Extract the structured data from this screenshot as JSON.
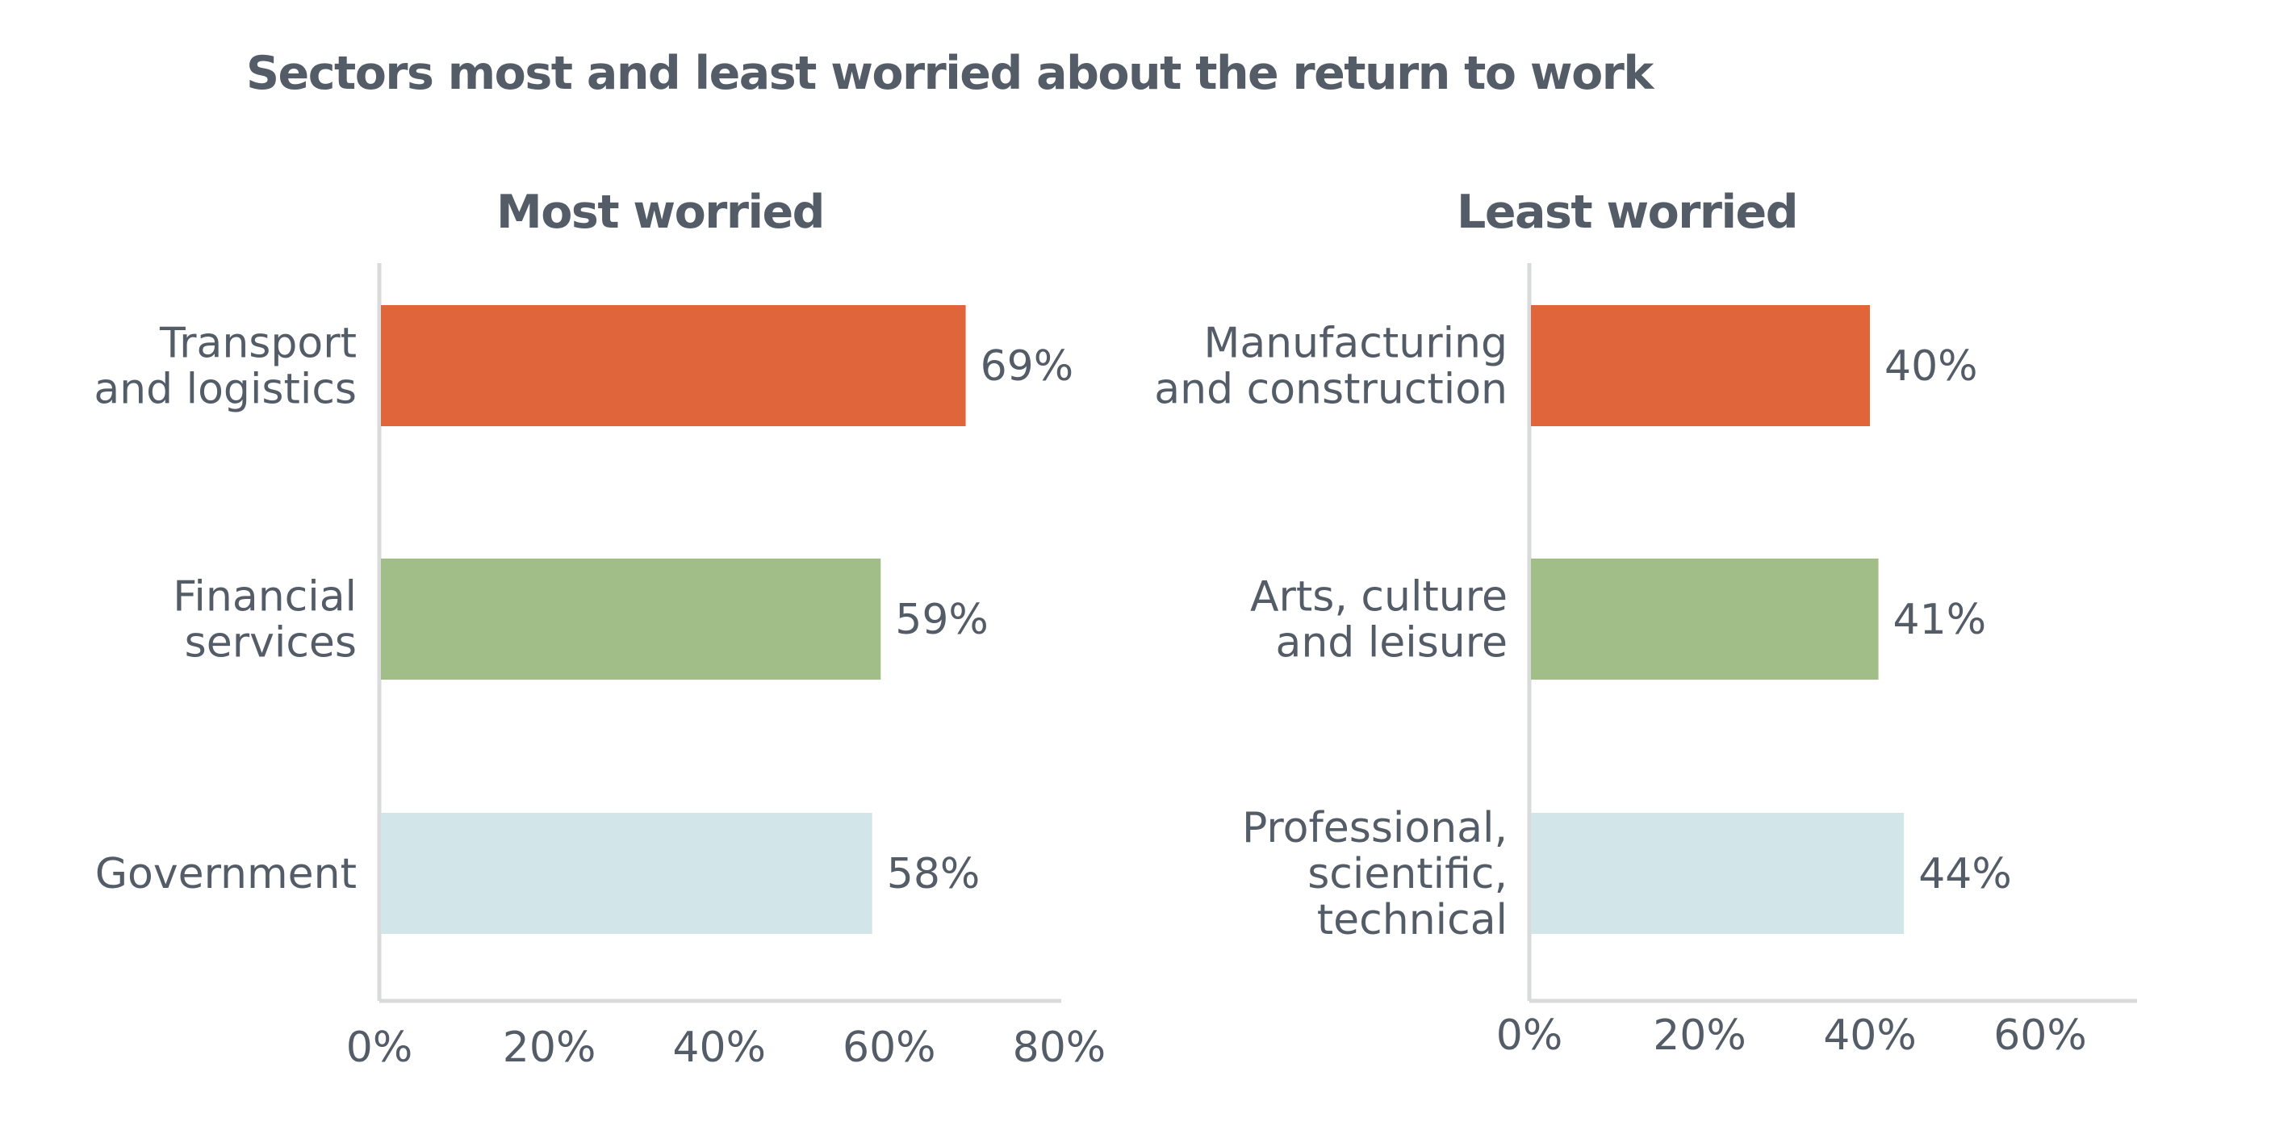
{
  "title": "Sectors most and least worried about the return to work",
  "colors": {
    "text": "#535c67",
    "axis": "#d9dadb",
    "bar_1": "#e0653b",
    "bar_2": "#a1bd88",
    "bar_3": "#d2e6ea"
  },
  "chart_data": [
    {
      "type": "bar",
      "orientation": "horizontal",
      "title": "Most worried",
      "categories": [
        [
          "Transport",
          "and logistics"
        ],
        [
          "Financial",
          "services"
        ],
        [
          "Government"
        ]
      ],
      "values": [
        69,
        59,
        58
      ],
      "value_labels": [
        "69%",
        "59%",
        "58%"
      ],
      "xlim": [
        0,
        80
      ],
      "xticks": [
        "0%",
        "20%",
        "40%",
        "60%",
        "80%"
      ],
      "xlabel": "",
      "ylabel": "",
      "unit": "%",
      "grid": false,
      "legend": "none"
    },
    {
      "type": "bar",
      "orientation": "horizontal",
      "title": "Least worried",
      "categories": [
        [
          "Manufacturing",
          "and construction"
        ],
        [
          "Arts, culture",
          "and leisure"
        ],
        [
          "Professional,",
          "scientific,",
          "technical"
        ]
      ],
      "values": [
        40,
        41,
        44
      ],
      "value_labels": [
        "40%",
        "41%",
        "44%"
      ],
      "xlim": [
        0,
        72
      ],
      "xticks": [
        "0%",
        "20%",
        "40%",
        "60%"
      ],
      "xlabel": "",
      "ylabel": "",
      "unit": "%",
      "grid": false,
      "legend": "none"
    }
  ]
}
